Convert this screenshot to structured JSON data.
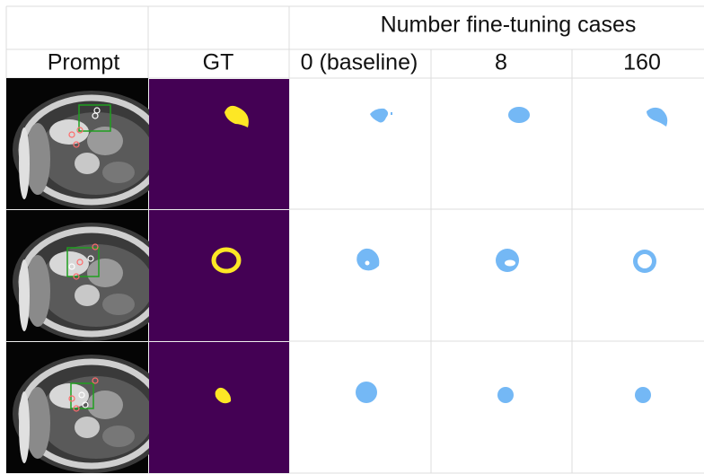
{
  "header": {
    "title": "Number fine-tuning cases"
  },
  "columns": [
    "Prompt",
    "GT",
    "0 (baseline)",
    "8",
    "160"
  ]
}
